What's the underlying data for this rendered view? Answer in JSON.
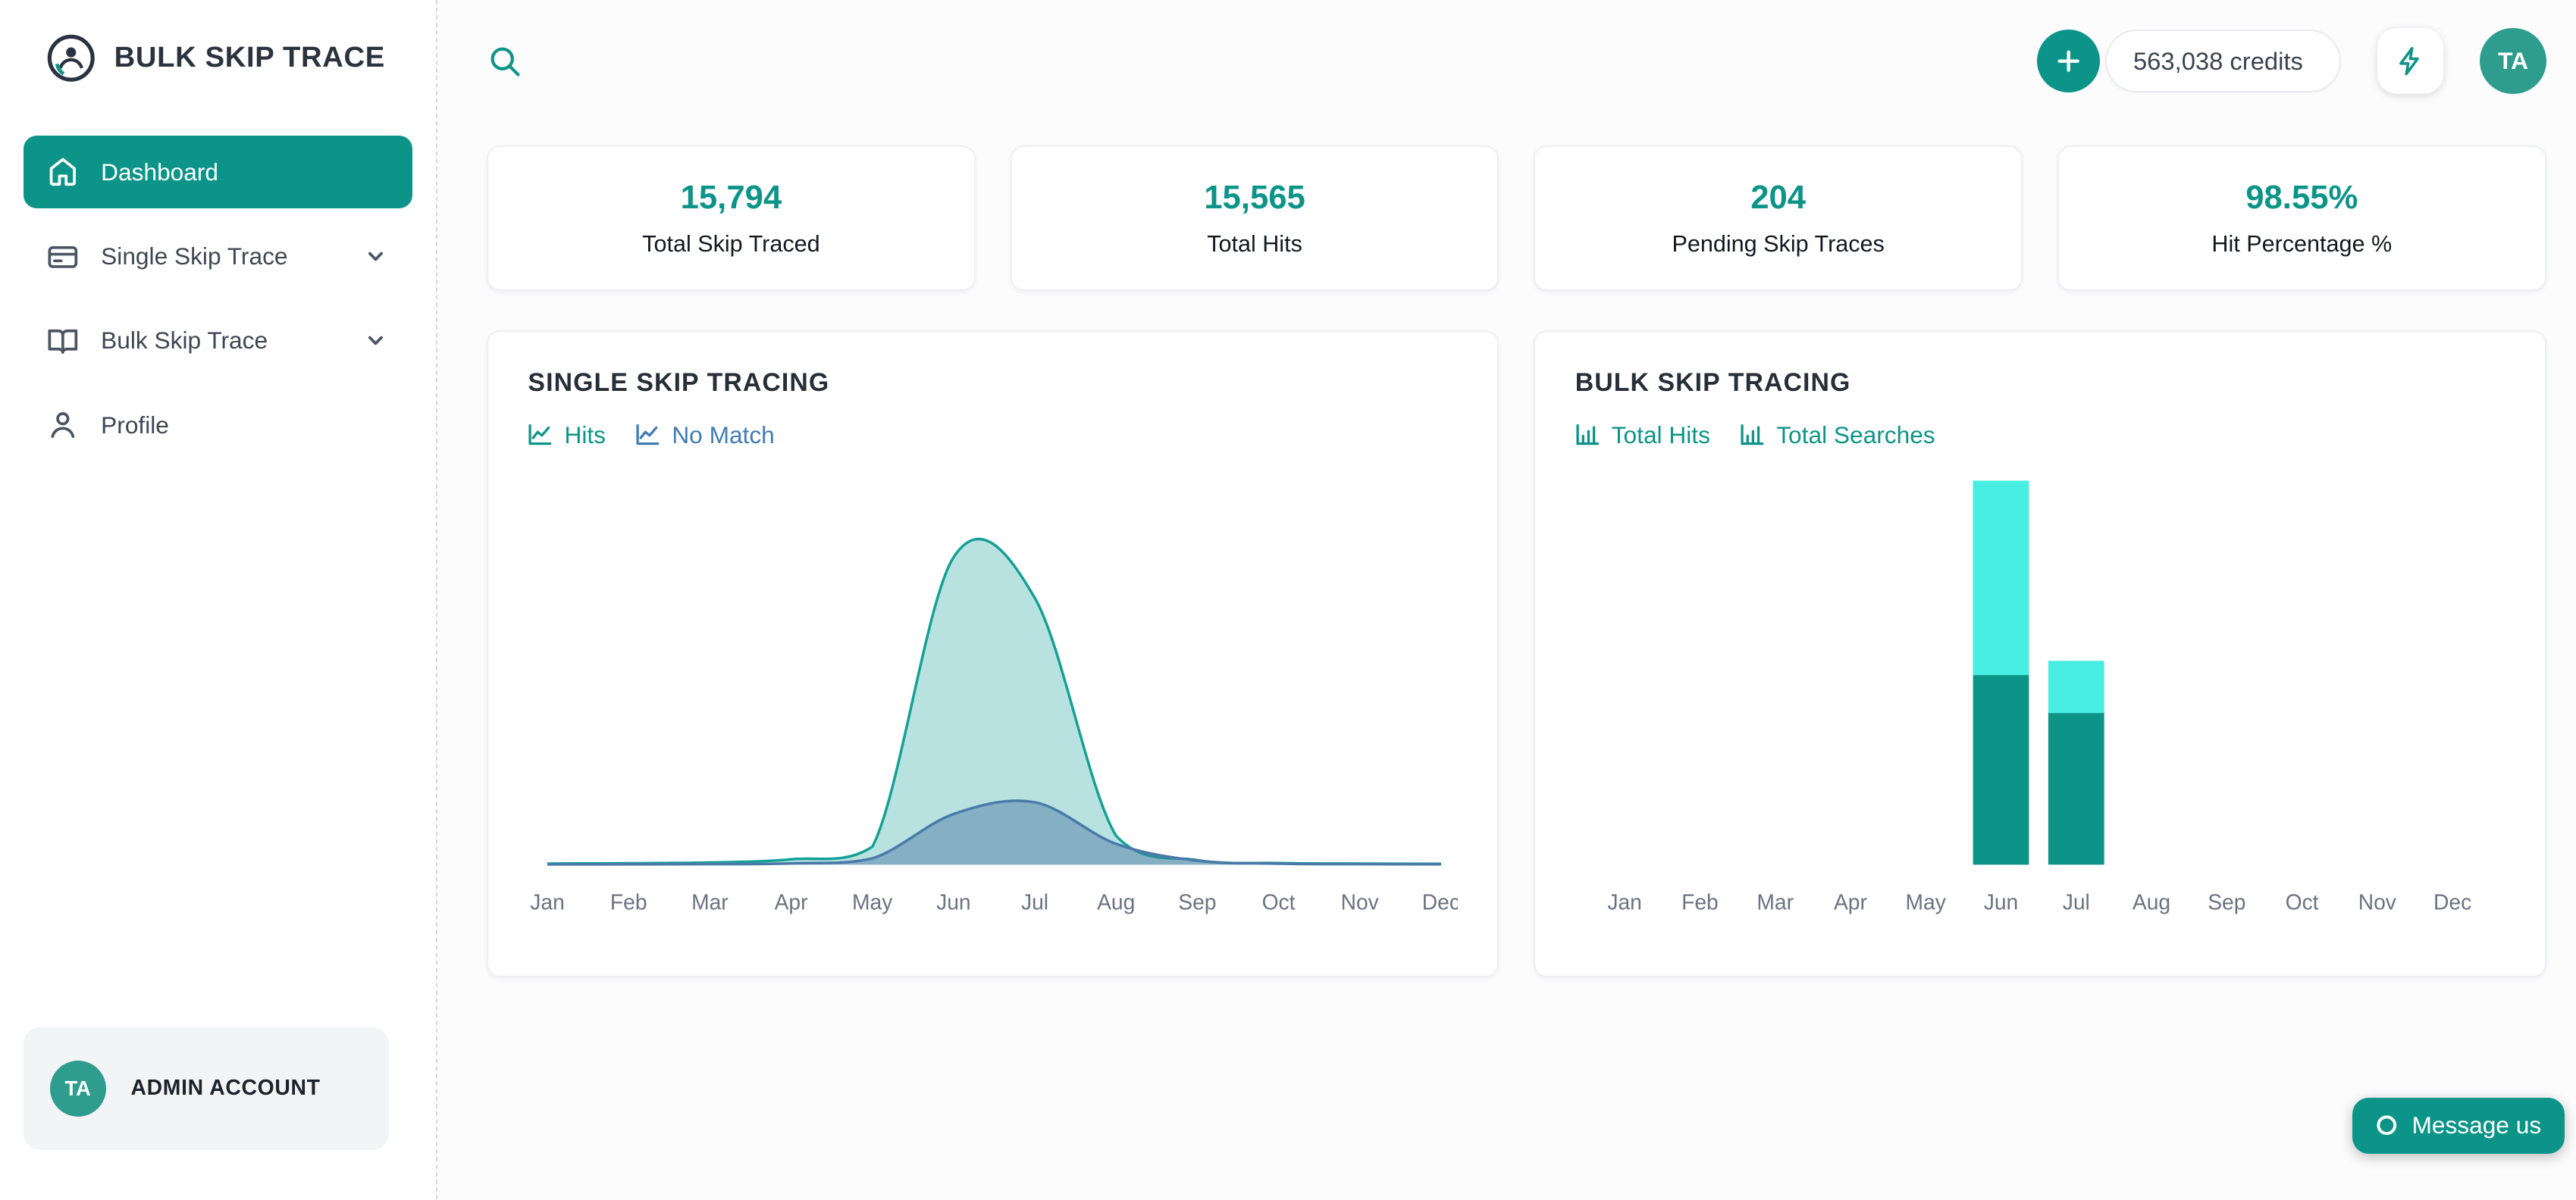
{
  "brand": {
    "name": "BULK SKIP TRACE"
  },
  "sidebar": {
    "items": [
      {
        "label": "Dashboard",
        "active": true
      },
      {
        "label": "Single Skip Trace",
        "expandable": true
      },
      {
        "label": "Bulk Skip Trace",
        "expandable": true
      },
      {
        "label": "Profile",
        "expandable": false
      }
    ],
    "account": {
      "initials": "TA",
      "label": "ADMIN ACCOUNT"
    }
  },
  "header": {
    "credits": "563,038 credits",
    "avatar_initials": "TA"
  },
  "stats": [
    {
      "value": "15,794",
      "label": "Total Skip Traced"
    },
    {
      "value": "15,565",
      "label": "Total Hits"
    },
    {
      "value": "204",
      "label": "Pending Skip Traces"
    },
    {
      "value": "98.55%",
      "label": "Hit Percentage %"
    }
  ],
  "chat": {
    "label": "Message us"
  },
  "colors": {
    "primary": "#0d9488",
    "cyan": "#47eee1",
    "blue": "#3f7cb6",
    "avatar": "#2f9d8e",
    "axis_label": "#6b7280"
  },
  "icons": [
    "brand-logo-icon",
    "search-icon",
    "plus-icon",
    "bolt-icon",
    "home-icon",
    "card-icon",
    "book-icon",
    "user-icon",
    "chevron-down-icon",
    "chart-line-icon",
    "chart-column-icon",
    "chat-ring-icon"
  ],
  "chart_data": [
    {
      "type": "area",
      "title": "SINGLE SKIP TRACING",
      "categories": [
        "Jan",
        "Feb",
        "Mar",
        "Apr",
        "May",
        "Jun",
        "Jul",
        "Aug",
        "Sep",
        "Oct",
        "Nov",
        "Dec"
      ],
      "series": [
        {
          "name": "Hits",
          "color": "#14a096",
          "fill": "rgba(20,160,150,0.30)",
          "values": [
            12,
            16,
            24,
            60,
            200,
            3400,
            2950,
            320,
            50,
            18,
            12,
            10
          ]
        },
        {
          "name": "No Match",
          "color": "#4a7aa9",
          "fill": "rgba(70,115,165,0.45)",
          "values": [
            3,
            4,
            6,
            15,
            70,
            560,
            690,
            230,
            45,
            12,
            6,
            4
          ]
        }
      ],
      "legend": [
        {
          "label": "Hits",
          "color": "#0d9488"
        },
        {
          "label": "No Match",
          "color": "#3f7cb6"
        }
      ],
      "xlabel": "",
      "ylabel": "",
      "ylim": [
        0,
        4300
      ],
      "grid": false,
      "legend_position": "top-left"
    },
    {
      "type": "bar",
      "title": "BULK SKIP TRACING",
      "stacked": true,
      "categories": [
        "Jan",
        "Feb",
        "Mar",
        "Apr",
        "May",
        "Jun",
        "Jul",
        "Aug",
        "Sep",
        "Oct",
        "Nov",
        "Dec"
      ],
      "series": [
        {
          "name": "Total Hits",
          "color": "#0d9488",
          "values": [
            0,
            0,
            0,
            0,
            0,
            4000,
            3200,
            0,
            0,
            0,
            0,
            0
          ]
        },
        {
          "name": "Total Searches",
          "color": "#47eee1",
          "values": [
            0,
            0,
            0,
            0,
            0,
            4100,
            1100,
            0,
            0,
            0,
            0,
            0
          ]
        }
      ],
      "legend": [
        {
          "label": "Total Hits",
          "color": "#0d9488"
        },
        {
          "label": "Total Searches",
          "color": "#0d9488"
        }
      ],
      "xlabel": "",
      "ylabel": "",
      "ylim": [
        0,
        8200
      ],
      "grid": false,
      "legend_position": "top-left"
    }
  ]
}
